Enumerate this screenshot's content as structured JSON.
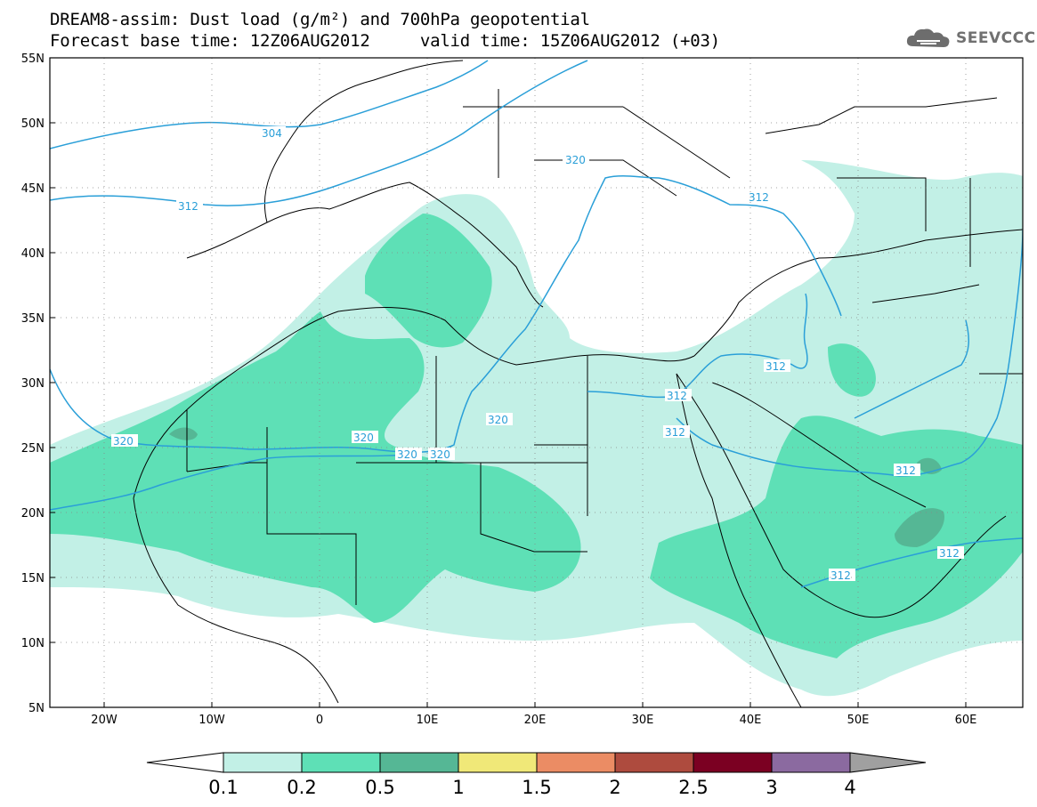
{
  "header": {
    "title_line1": "DREAM8-assim: Dust load (g/m²) and 700hPa geopotential",
    "title_line2": "Forecast base time: 12Z06AUG2012     valid time: 15Z06AUG2012 (+03)",
    "logo_text": "SEEVCCC",
    "logo_icon": "cloud-icon"
  },
  "map": {
    "lat_labels": [
      "55N",
      "50N",
      "45N",
      "40N",
      "35N",
      "30N",
      "25N",
      "20N",
      "15N",
      "10N",
      "5N"
    ],
    "lon_labels": [
      "20W",
      "10W",
      "0",
      "10E",
      "20E",
      "30E",
      "40E",
      "50E",
      "60E"
    ],
    "contour_labels": [
      "304",
      "312",
      "320",
      "320",
      "312",
      "320",
      "320",
      "320",
      "320",
      "312",
      "312",
      "312",
      "312",
      "312",
      "312"
    ],
    "contour_color": "#2a9fd8",
    "coastline_color": "#000000"
  },
  "colorbar": {
    "ticks": [
      "0.1",
      "0.2",
      "0.5",
      "1",
      "1.5",
      "2",
      "2.5",
      "3",
      "4"
    ],
    "colors": [
      "#ffffff",
      "#c2f0e6",
      "#5ee0b6",
      "#55b795",
      "#f0e878",
      "#eb8c64",
      "#ae4b3e",
      "#7b0022",
      "#8b6aa0",
      "#a0a0a0"
    ]
  }
}
